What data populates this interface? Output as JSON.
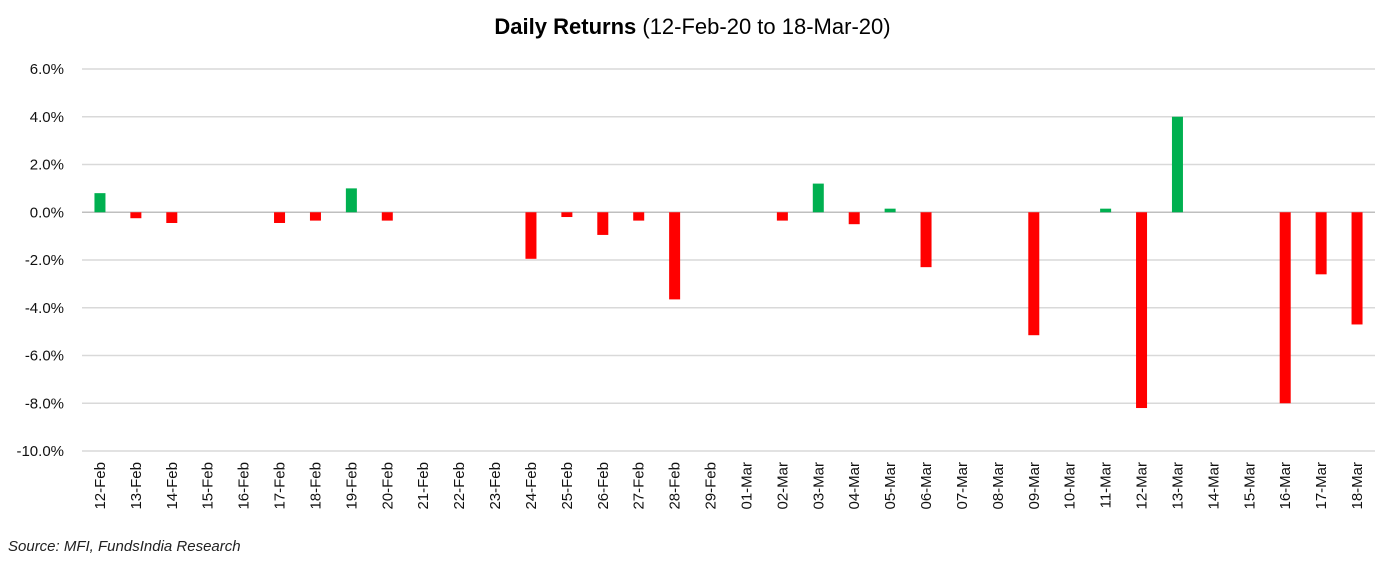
{
  "chart_data": {
    "type": "bar",
    "title_bold": "Daily Returns",
    "title_rest": " (12-Feb-20 to 18-Mar-20)",
    "categories": [
      "12-Feb",
      "13-Feb",
      "14-Feb",
      "15-Feb",
      "16-Feb",
      "17-Feb",
      "18-Feb",
      "19-Feb",
      "20-Feb",
      "21-Feb",
      "22-Feb",
      "23-Feb",
      "24-Feb",
      "25-Feb",
      "26-Feb",
      "27-Feb",
      "28-Feb",
      "29-Feb",
      "01-Mar",
      "02-Mar",
      "03-Mar",
      "04-Mar",
      "05-Mar",
      "06-Mar",
      "07-Mar",
      "08-Mar",
      "09-Mar",
      "10-Mar",
      "11-Mar",
      "12-Mar",
      "13-Mar",
      "14-Mar",
      "15-Mar",
      "16-Mar",
      "17-Mar",
      "18-Mar"
    ],
    "values": [
      0.8,
      -0.25,
      -0.45,
      0,
      0,
      -0.45,
      -0.35,
      1.0,
      -0.35,
      0,
      0,
      0,
      -1.95,
      -0.2,
      -0.95,
      -0.35,
      -3.65,
      0,
      0,
      -0.35,
      1.2,
      -0.5,
      0.15,
      -2.3,
      0,
      0,
      -5.15,
      0,
      0.15,
      -8.2,
      4.0,
      0,
      0,
      -8.0,
      -2.6,
      -4.7
    ],
    "ylim": [
      -10,
      6
    ],
    "yticks": [
      6,
      4,
      2,
      0,
      -2,
      -4,
      -6,
      -8,
      -10
    ],
    "ytick_labels": [
      "6.0%",
      "4.0%",
      "2.0%",
      "0.0%",
      "-2.0%",
      "-4.0%",
      "-6.0%",
      "-8.0%",
      "-10.0%"
    ],
    "grid": true,
    "positive_color": "#00b050",
    "negative_color": "#ff0000",
    "gridline_color": "#d9d9d9",
    "source": "Source: MFI, FundsIndia Research"
  }
}
